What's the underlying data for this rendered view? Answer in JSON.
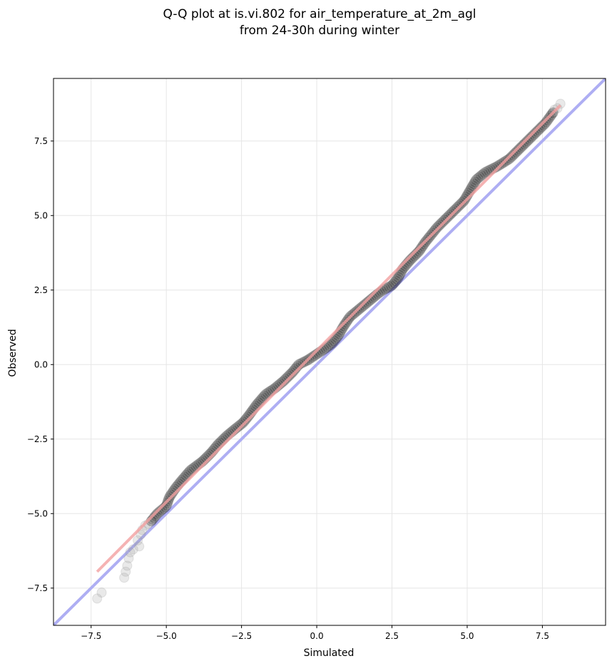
{
  "chart_data": {
    "type": "scatter",
    "title_lines": [
      "Q-Q plot at is.vi.802 for air_temperature_at_2m_agl",
      "from 24-30h during winter"
    ],
    "xlabel": "Simulated",
    "ylabel": "Observed",
    "xlim": [
      -8.75,
      9.6
    ],
    "ylim": [
      -8.75,
      9.6
    ],
    "x_ticks": [
      -7.5,
      -5.0,
      -2.5,
      0.0,
      2.5,
      5.0,
      7.5
    ],
    "x_tick_labels": [
      "−7.5",
      "−5.0",
      "−2.5",
      "0.0",
      "2.5",
      "5.0",
      "7.5"
    ],
    "y_ticks": [
      -7.5,
      -5.0,
      -2.5,
      0.0,
      2.5,
      5.0,
      7.5
    ],
    "y_tick_labels": [
      "−7.5",
      "−5.0",
      "−2.5",
      "0.0",
      "2.5",
      "5.0",
      "7.5"
    ],
    "grid": true,
    "reference_line": {
      "slope": 1,
      "intercept": 0,
      "color": "#aaaaf2"
    },
    "fit_line": {
      "x": [
        -7.3,
        8.1
      ],
      "y": [
        -6.95,
        8.7
      ],
      "color": "#f2a0a0"
    },
    "point_color": "#000000",
    "faded_points": [
      [
        -7.3,
        -7.85
      ],
      [
        -7.15,
        -7.65
      ],
      [
        -6.4,
        -7.15
      ],
      [
        -6.35,
        -6.95
      ],
      [
        -6.3,
        -6.75
      ],
      [
        -6.25,
        -6.5
      ],
      [
        -6.2,
        -6.3
      ],
      [
        -6.1,
        -6.2
      ],
      [
        -5.9,
        -6.1
      ],
      [
        -5.95,
        -5.9
      ],
      [
        -5.85,
        -5.7
      ],
      [
        -5.8,
        -5.55
      ],
      [
        -5.7,
        -5.4
      ],
      [
        -5.6,
        -5.35
      ],
      [
        -5.5,
        -5.25
      ],
      [
        7.85,
        8.45
      ],
      [
        7.9,
        8.55
      ],
      [
        8.0,
        8.6
      ],
      [
        8.1,
        8.75
      ]
    ],
    "qq_path": [
      [
        -5.5,
        -5.25
      ],
      [
        -5.3,
        -5.0
      ],
      [
        -5.0,
        -4.75
      ],
      [
        -4.9,
        -4.45
      ],
      [
        -4.7,
        -4.15
      ],
      [
        -4.5,
        -3.9
      ],
      [
        -4.2,
        -3.55
      ],
      [
        -3.8,
        -3.25
      ],
      [
        -3.5,
        -2.95
      ],
      [
        -3.3,
        -2.7
      ],
      [
        -3.0,
        -2.4
      ],
      [
        -2.7,
        -2.15
      ],
      [
        -2.45,
        -1.95
      ],
      [
        -2.25,
        -1.7
      ],
      [
        -2.0,
        -1.35
      ],
      [
        -1.7,
        -1.0
      ],
      [
        -1.4,
        -0.8
      ],
      [
        -1.1,
        -0.55
      ],
      [
        -0.8,
        -0.25
      ],
      [
        -0.6,
        0.0
      ],
      [
        -0.3,
        0.15
      ],
      [
        0.0,
        0.35
      ],
      [
        0.3,
        0.55
      ],
      [
        0.5,
        0.7
      ],
      [
        0.7,
        0.95
      ],
      [
        0.9,
        1.3
      ],
      [
        1.1,
        1.6
      ],
      [
        1.4,
        1.85
      ],
      [
        1.7,
        2.1
      ],
      [
        2.0,
        2.35
      ],
      [
        2.2,
        2.5
      ],
      [
        2.5,
        2.65
      ],
      [
        2.7,
        2.9
      ],
      [
        2.85,
        3.2
      ],
      [
        3.1,
        3.5
      ],
      [
        3.4,
        3.8
      ],
      [
        3.6,
        4.1
      ],
      [
        3.8,
        4.35
      ],
      [
        4.0,
        4.6
      ],
      [
        4.3,
        4.9
      ],
      [
        4.6,
        5.2
      ],
      [
        4.9,
        5.5
      ],
      [
        5.1,
        5.85
      ],
      [
        5.3,
        6.2
      ],
      [
        5.6,
        6.45
      ],
      [
        6.0,
        6.65
      ],
      [
        6.4,
        6.9
      ],
      [
        6.8,
        7.3
      ],
      [
        7.2,
        7.7
      ],
      [
        7.6,
        8.1
      ],
      [
        7.85,
        8.45
      ]
    ]
  }
}
